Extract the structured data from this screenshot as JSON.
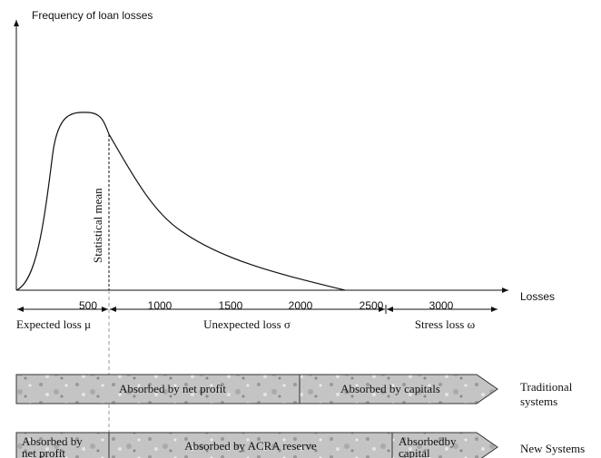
{
  "y_axis": {
    "label": "Frequency of loan losses"
  },
  "x_axis": {
    "label": "Losses",
    "ticks": [
      "500",
      "1000",
      "1500",
      "2000",
      "2500",
      "3000"
    ]
  },
  "annotation": "Statistical mean",
  "segments": [
    "Expected loss μ",
    "Unexpected loss σ",
    "Stress loss ω"
  ],
  "bands": [
    {
      "label": [
        "Traditional",
        "systems"
      ],
      "parts": [
        [
          "Absorbed by net profit"
        ],
        [
          "Absorbed by capitals"
        ]
      ]
    },
    {
      "label": [
        "New Systems"
      ],
      "parts": [
        [
          "Absorbed by",
          "net profit"
        ],
        [
          "Absorbed by ACRA reserve"
        ],
        [
          "Absorbedby",
          "capital"
        ]
      ]
    }
  ]
}
